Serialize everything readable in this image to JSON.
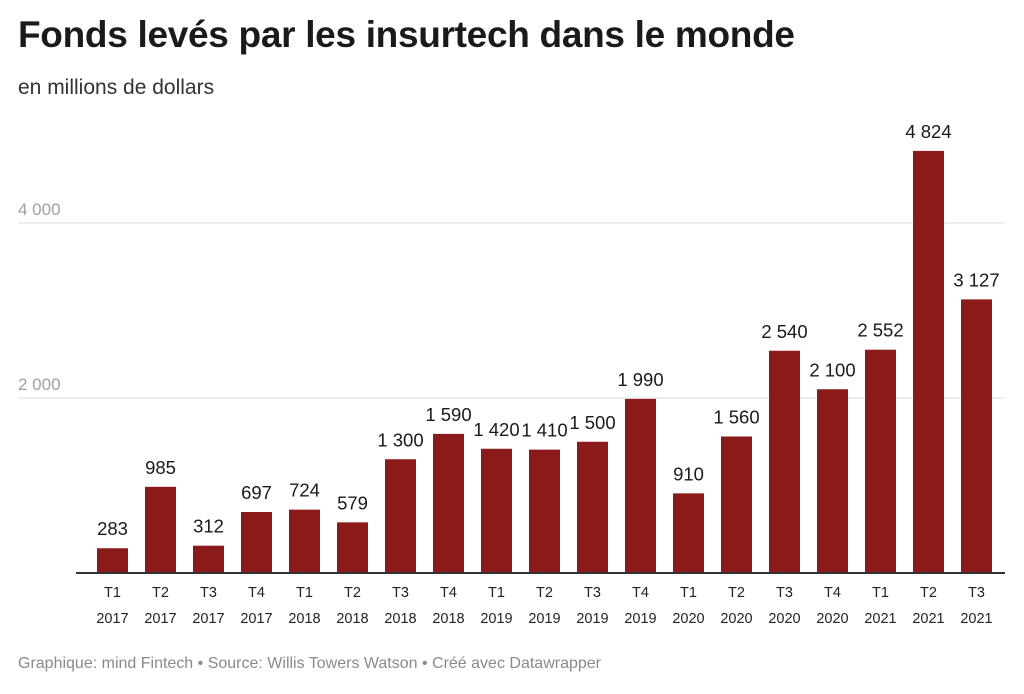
{
  "title": "Fonds levés par les insurtech dans le monde",
  "subtitle": "en millions de dollars",
  "footer": "Graphique: mind Fintech • Source: Willis Towers Watson • Créé avec Datawrapper",
  "colors": {
    "bar": "#8b1a1a",
    "grid": "#dddddd",
    "axis": "#333333"
  },
  "chart_data": {
    "type": "bar",
    "title": "Fonds levés par les insurtech dans le monde",
    "subtitle": "en millions de dollars",
    "xlabel": "",
    "ylabel": "",
    "ylim": [
      0,
      5000
    ],
    "yticks": [
      {
        "value": 2000,
        "label": "2 000"
      },
      {
        "value": 4000,
        "label": "4 000"
      }
    ],
    "grid": true,
    "categories": [
      [
        "T1",
        "2017"
      ],
      [
        "T2",
        "2017"
      ],
      [
        "T3",
        "2017"
      ],
      [
        "T4",
        "2017"
      ],
      [
        "T1",
        "2018"
      ],
      [
        "T2",
        "2018"
      ],
      [
        "T3",
        "2018"
      ],
      [
        "T4",
        "2018"
      ],
      [
        "T1",
        "2019"
      ],
      [
        "T2",
        "2019"
      ],
      [
        "T3",
        "2019"
      ],
      [
        "T4",
        "2019"
      ],
      [
        "T1",
        "2020"
      ],
      [
        "T2",
        "2020"
      ],
      [
        "T3",
        "2020"
      ],
      [
        "T4",
        "2020"
      ],
      [
        "T1",
        "2021"
      ],
      [
        "T2",
        "2021"
      ],
      [
        "T3",
        "2021"
      ]
    ],
    "values": [
      283,
      985,
      312,
      697,
      724,
      579,
      1300,
      1590,
      1420,
      1410,
      1500,
      1990,
      910,
      1560,
      2540,
      2100,
      2552,
      4824,
      3127
    ],
    "value_labels": [
      "283",
      "985",
      "312",
      "697",
      "724",
      "579",
      "1 300",
      "1 590",
      "1 420",
      "1 410",
      "1 500",
      "1 990",
      "910",
      "1 560",
      "2 540",
      "2 100",
      "2 552",
      "4 824",
      "3 127"
    ]
  }
}
